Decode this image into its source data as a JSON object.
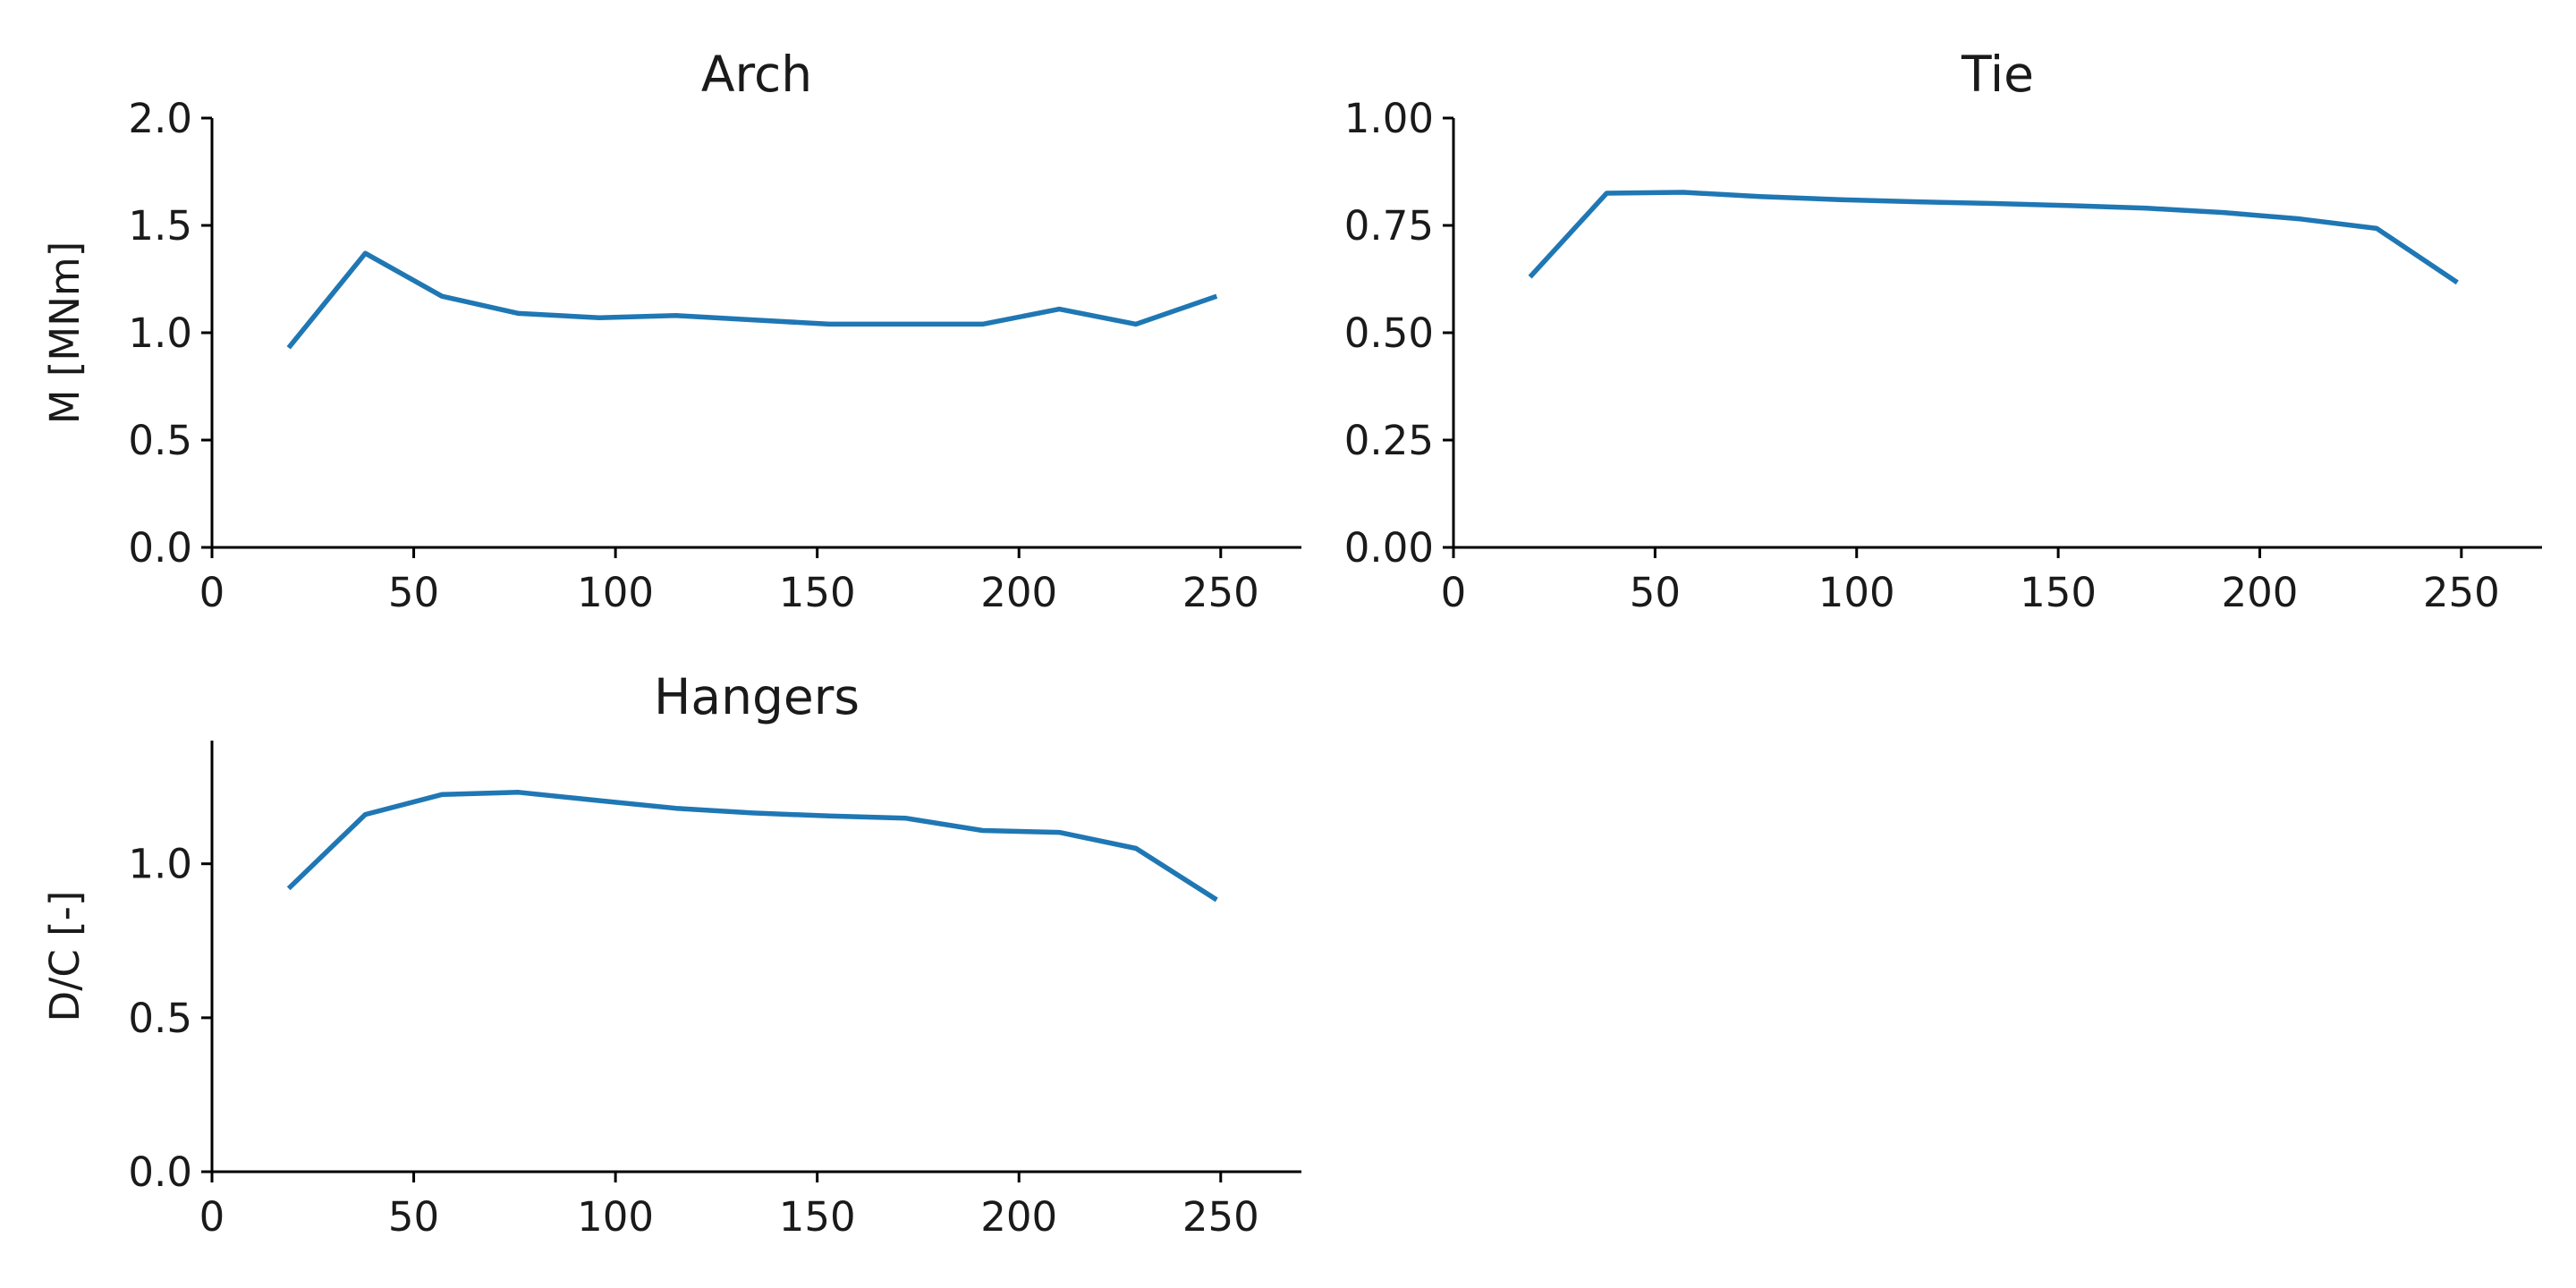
{
  "chart_data": [
    {
      "type": "line",
      "title": "Arch",
      "xlabel": "",
      "ylabel": "M [MNm]",
      "xlim": [
        0,
        270
      ],
      "ylim": [
        0,
        2.0
      ],
      "xticks": [
        0,
        50,
        100,
        150,
        200,
        250
      ],
      "xtick_labels": [
        "0",
        "50",
        "100",
        "150",
        "200",
        "250"
      ],
      "yticks": [
        0,
        0.5,
        1.0,
        1.5,
        2.0
      ],
      "ytick_labels": [
        "0.0",
        "0.5",
        "1.0",
        "1.5",
        "2.0"
      ],
      "grid": false,
      "series": [
        {
          "x": [
            19,
            38,
            57,
            76,
            96,
            115,
            134,
            153,
            172,
            191,
            210,
            229,
            249
          ],
          "values": [
            0.93,
            1.37,
            1.17,
            1.09,
            1.07,
            1.08,
            1.06,
            1.04,
            1.04,
            1.04,
            1.11,
            1.04,
            1.17
          ]
        }
      ]
    },
    {
      "type": "line",
      "title": "Tie",
      "xlabel": "",
      "ylabel": "",
      "xlim": [
        0,
        270
      ],
      "ylim": [
        0,
        1.0
      ],
      "xticks": [
        0,
        50,
        100,
        150,
        200,
        250
      ],
      "xtick_labels": [
        "0",
        "50",
        "100",
        "150",
        "200",
        "250"
      ],
      "yticks": [
        0,
        0.25,
        0.5,
        0.75,
        1.0
      ],
      "ytick_labels": [
        "0.00",
        "0.25",
        "0.50",
        "0.75",
        "1.00"
      ],
      "grid": false,
      "series": [
        {
          "x": [
            19,
            38,
            57,
            76,
            96,
            115,
            134,
            153,
            172,
            191,
            210,
            229,
            249
          ],
          "values": [
            0.63,
            0.825,
            0.827,
            0.817,
            0.81,
            0.805,
            0.801,
            0.796,
            0.79,
            0.78,
            0.765,
            0.743,
            0.617
          ]
        }
      ]
    },
    {
      "type": "line",
      "title": "Hangers",
      "xlabel": "",
      "ylabel": "D/C [-]",
      "xlim": [
        0,
        270
      ],
      "ylim": [
        0,
        1.4
      ],
      "xticks": [
        0,
        50,
        100,
        150,
        200,
        250
      ],
      "xtick_labels": [
        "0",
        "50",
        "100",
        "150",
        "200",
        "250"
      ],
      "yticks": [
        0,
        0.5,
        1.0
      ],
      "ytick_labels": [
        "0.0",
        "0.5",
        "1.0"
      ],
      "grid": false,
      "series": [
        {
          "x": [
            19,
            38,
            57,
            76,
            96,
            115,
            134,
            153,
            172,
            191,
            210,
            229,
            249
          ],
          "values": [
            0.92,
            1.16,
            1.225,
            1.232,
            1.205,
            1.18,
            1.165,
            1.155,
            1.148,
            1.108,
            1.102,
            1.05,
            0.883
          ]
        }
      ]
    }
  ],
  "colors": {
    "line": "#1f77b4",
    "axis": "#000000",
    "text": "#1a1a1a"
  }
}
